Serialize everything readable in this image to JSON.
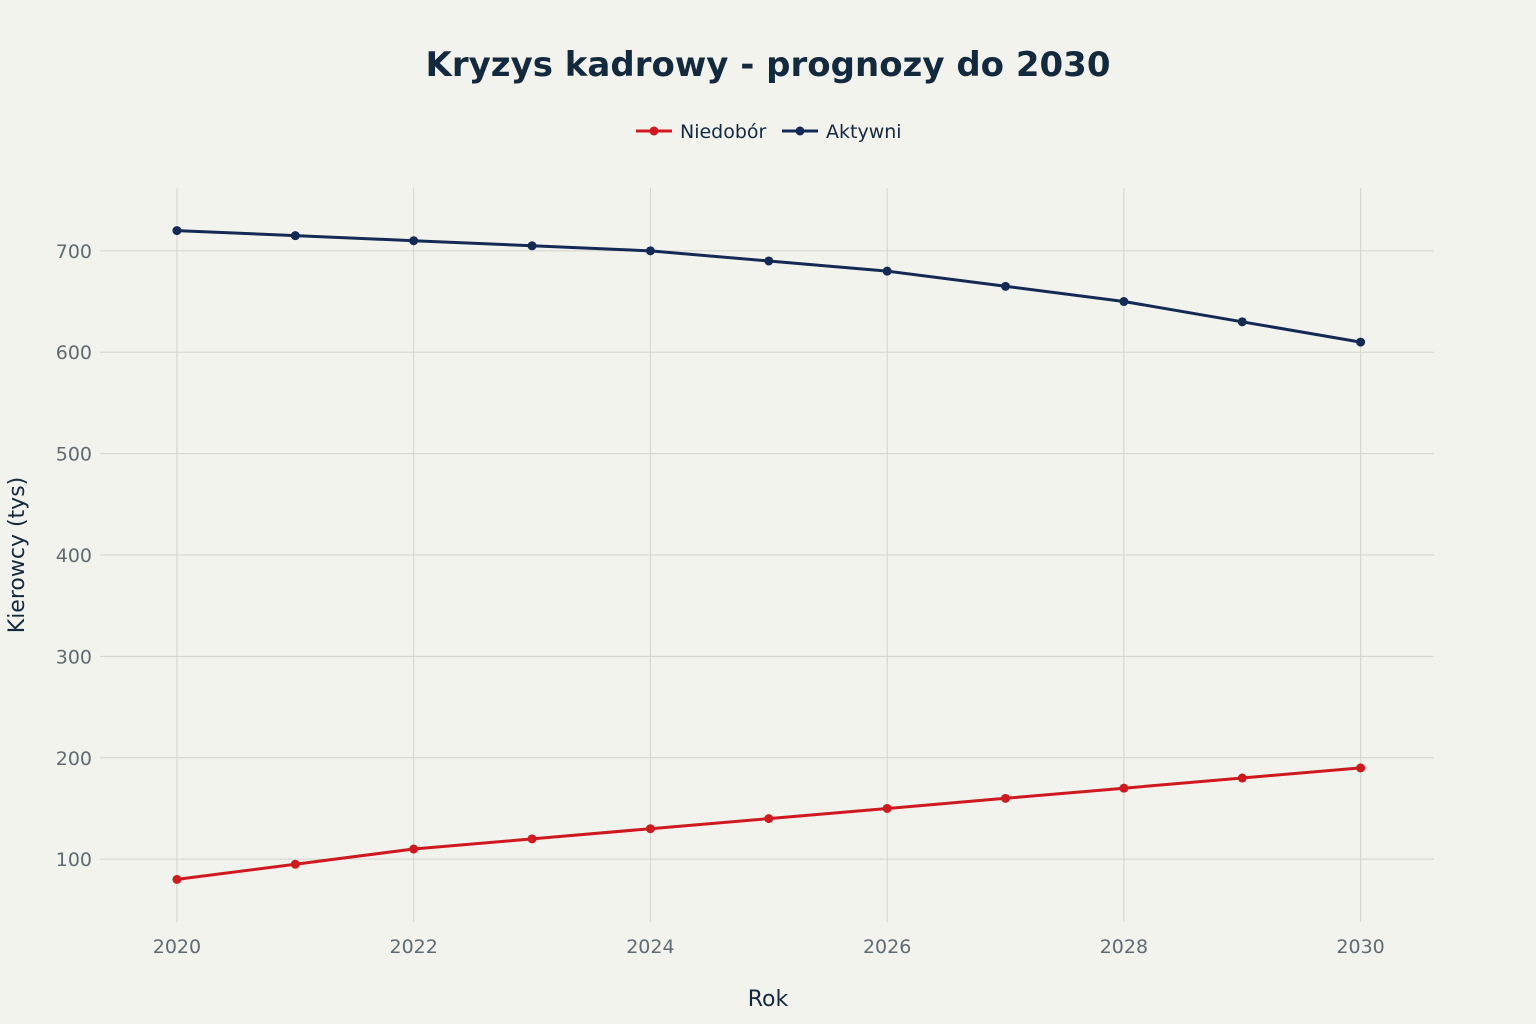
{
  "chart_data": {
    "type": "line",
    "title": "Kryzys kadrowy - prognozy do 2030",
    "xlabel": "Rok",
    "ylabel": "Kierowcy (tys)",
    "x": [
      2020,
      2021,
      2022,
      2023,
      2024,
      2025,
      2026,
      2027,
      2028,
      2029,
      2030
    ],
    "x_ticks": [
      "2020",
      "2022",
      "2024",
      "2026",
      "2028",
      "2030"
    ],
    "y_ticks": [
      "100",
      "200",
      "300",
      "400",
      "500",
      "600",
      "700"
    ],
    "xlim": [
      2019.35,
      2030.62
    ],
    "ylim": [
      38,
      762
    ],
    "grid": true,
    "legend_position": "top-center",
    "series": [
      {
        "name": "Niedobór",
        "color": "#d0191f",
        "values": [
          80,
          95,
          110,
          120,
          130,
          140,
          150,
          160,
          170,
          180,
          190
        ]
      },
      {
        "name": "Aktywni",
        "color": "#142a55",
        "values": [
          720,
          715,
          710,
          705,
          700,
          690,
          680,
          665,
          650,
          630,
          610
        ]
      }
    ]
  }
}
